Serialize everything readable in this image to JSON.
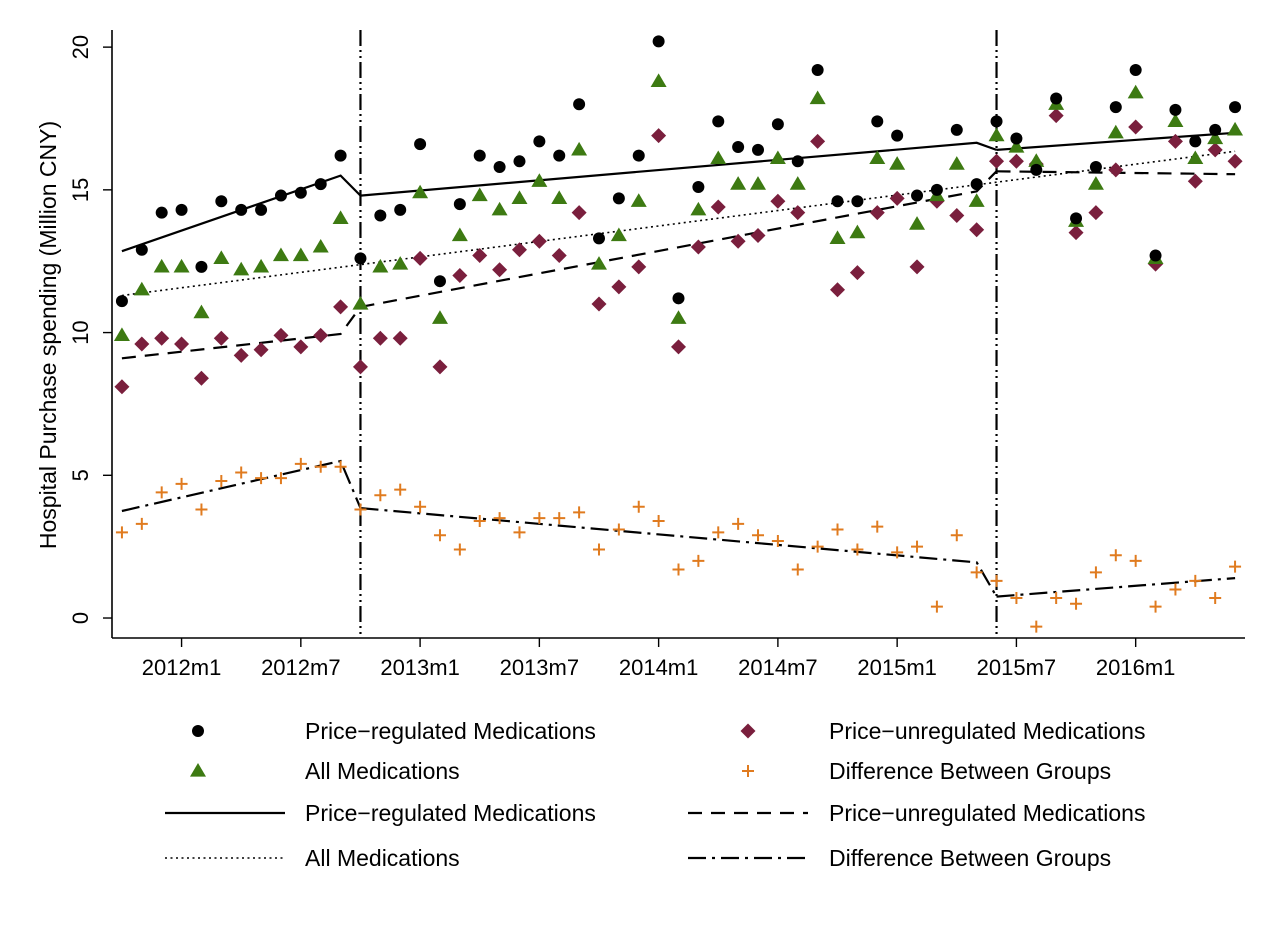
{
  "chart_data": {
    "type": "scatter",
    "ylabel": "Hospital Purchase spending (Million CNY)",
    "xlabel": "",
    "xlim": [
      -0.5,
      56.5
    ],
    "ylim": [
      -0.7,
      20.6
    ],
    "x_ticks": [
      {
        "x": 3,
        "label": "2012m1"
      },
      {
        "x": 9,
        "label": "2012m7"
      },
      {
        "x": 15,
        "label": "2013m1"
      },
      {
        "x": 21,
        "label": "2013m7"
      },
      {
        "x": 27,
        "label": "2014m1"
      },
      {
        "x": 33,
        "label": "2014m7"
      },
      {
        "x": 39,
        "label": "2015m1"
      },
      {
        "x": 45,
        "label": "2015m7"
      },
      {
        "x": 51,
        "label": "2016m1"
      }
    ],
    "y_ticks": [
      0,
      5,
      10,
      15,
      20
    ],
    "vlines": [
      12,
      44
    ],
    "period_start": "2011m10",
    "scatter_series": [
      {
        "name": "Price−regulated Medications",
        "marker": "circle",
        "color": "#000000",
        "values": [
          11.1,
          12.9,
          14.2,
          14.3,
          12.3,
          14.6,
          14.3,
          14.3,
          14.8,
          14.9,
          15.2,
          16.2,
          12.6,
          14.1,
          14.3,
          16.6,
          11.8,
          14.5,
          16.2,
          15.8,
          16.0,
          16.7,
          16.2,
          18.0,
          13.3,
          14.7,
          16.2,
          20.2,
          11.2,
          15.1,
          17.4,
          16.5,
          16.4,
          17.3,
          16.0,
          19.2,
          14.6,
          14.6,
          17.4,
          16.9,
          14.8,
          15.0,
          17.1,
          15.2,
          17.4,
          16.8,
          15.7,
          18.2,
          14.0,
          15.8,
          17.9,
          19.2,
          12.7,
          17.8,
          16.7,
          17.1,
          17.9
        ]
      },
      {
        "name": "All Medications",
        "marker": "triangle",
        "color": "#3d7a12",
        "values": [
          9.9,
          11.5,
          12.3,
          12.3,
          10.7,
          12.6,
          12.2,
          12.3,
          12.7,
          12.7,
          13.0,
          14.0,
          11.0,
          12.3,
          12.4,
          14.9,
          10.5,
          13.4,
          14.8,
          14.3,
          14.7,
          15.3,
          14.7,
          16.4,
          12.4,
          13.4,
          14.6,
          18.8,
          10.5,
          14.3,
          16.1,
          15.2,
          15.2,
          16.1,
          15.2,
          18.2,
          13.3,
          13.5,
          16.1,
          15.9,
          13.8,
          14.8,
          15.9,
          14.6,
          16.9,
          16.5,
          16.0,
          18.0,
          13.9,
          15.2,
          17.0,
          18.4,
          12.6,
          17.4,
          16.1,
          16.8,
          17.1
        ]
      },
      {
        "name": "Price−unregulated Medications",
        "marker": "diamond",
        "color": "#7a1f3d",
        "values": [
          8.1,
          9.6,
          9.8,
          9.6,
          8.4,
          9.8,
          9.2,
          9.4,
          9.9,
          9.5,
          9.9,
          10.9,
          8.8,
          9.8,
          9.8,
          12.6,
          8.8,
          12.0,
          12.7,
          12.2,
          12.9,
          13.2,
          12.7,
          14.2,
          11.0,
          11.6,
          12.3,
          16.9,
          9.5,
          13.0,
          14.4,
          13.2,
          13.4,
          14.6,
          14.2,
          16.7,
          11.5,
          12.1,
          14.2,
          14.7,
          12.3,
          14.6,
          14.1,
          13.6,
          16.0,
          16.0,
          15.9,
          17.6,
          13.5,
          14.2,
          15.7,
          17.2,
          12.4,
          16.7,
          15.3,
          16.4,
          16.0
        ]
      },
      {
        "name": "Difference Between Groups",
        "marker": "plus",
        "color": "#e07b1f",
        "values": [
          3.0,
          3.3,
          4.4,
          4.7,
          3.8,
          4.8,
          5.1,
          4.9,
          4.9,
          5.4,
          5.3,
          5.3,
          3.8,
          4.3,
          4.5,
          3.9,
          2.9,
          2.4,
          3.4,
          3.5,
          3.0,
          3.5,
          3.5,
          3.7,
          2.4,
          3.1,
          3.9,
          3.4,
          1.7,
          2.0,
          3.0,
          3.3,
          2.9,
          2.7,
          1.7,
          2.5,
          3.1,
          2.4,
          3.2,
          2.3,
          2.5,
          0.4,
          2.9,
          1.6,
          1.3,
          0.7,
          -0.3,
          0.7,
          0.5,
          1.6,
          2.2,
          2.0,
          0.4,
          1.0,
          1.3,
          0.7,
          1.8
        ]
      }
    ],
    "line_series": [
      {
        "name": "Price−regulated Medications",
        "style": "solid",
        "segments": [
          [
            [
              0,
              12.85
            ],
            [
              11,
              15.5
            ],
            [
              12,
              14.8
            ]
          ],
          [
            [
              12,
              14.8
            ],
            [
              43,
              16.65
            ],
            [
              44,
              16.4
            ]
          ],
          [
            [
              44,
              16.4
            ],
            [
              56,
              17.0
            ]
          ]
        ]
      },
      {
        "name": "Price−unregulated Medications",
        "style": "dash",
        "segments": [
          [
            [
              0,
              9.1
            ],
            [
              11,
              9.95
            ],
            [
              12,
              10.9
            ]
          ],
          [
            [
              12,
              10.9
            ],
            [
              43,
              14.95
            ],
            [
              44,
              15.65
            ]
          ],
          [
            [
              44,
              15.65
            ],
            [
              56,
              15.55
            ]
          ]
        ]
      },
      {
        "name": "All Medications",
        "style": "dot",
        "segments": [
          [
            [
              0,
              11.3
            ],
            [
              56,
              16.35
            ]
          ]
        ]
      },
      {
        "name": "Difference Between Groups",
        "style": "dashdot",
        "segments": [
          [
            [
              0,
              3.75
            ],
            [
              11,
              5.5
            ],
            [
              12,
              3.85
            ]
          ],
          [
            [
              12,
              3.85
            ],
            [
              43,
              1.95
            ],
            [
              44,
              0.75
            ]
          ],
          [
            [
              44,
              0.75
            ],
            [
              56,
              1.4
            ]
          ]
        ]
      }
    ],
    "legend": [
      {
        "symbol": "circle",
        "color": "#000000",
        "label": "Price−regulated Medications"
      },
      {
        "symbol": "diamond",
        "color": "#7a1f3d",
        "label": "Price−unregulated Medications"
      },
      {
        "symbol": "triangle",
        "color": "#3d7a12",
        "label": "All Medications"
      },
      {
        "symbol": "plus",
        "color": "#e07b1f",
        "label": "Difference Between Groups"
      },
      {
        "symbol": "line-solid",
        "color": "#000000",
        "label": "Price−regulated Medications"
      },
      {
        "symbol": "line-dash",
        "color": "#000000",
        "label": "Price−unregulated Medications"
      },
      {
        "symbol": "line-dot",
        "color": "#000000",
        "label": "All Medications"
      },
      {
        "symbol": "line-dashdot",
        "color": "#000000",
        "label": "Difference Between Groups"
      }
    ],
    "legend_position": "bottom",
    "grid": false
  }
}
